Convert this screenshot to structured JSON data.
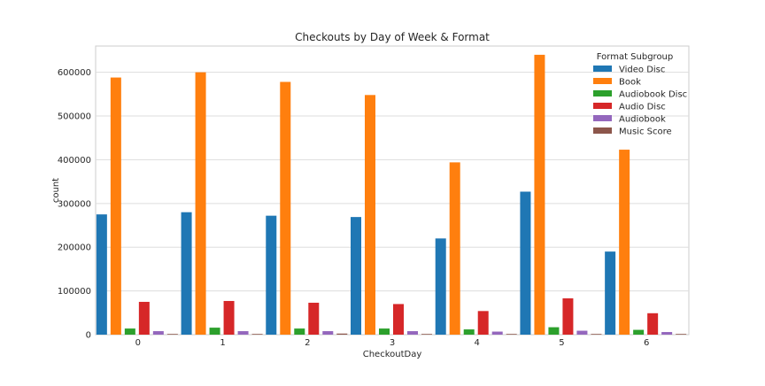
{
  "chart_data": {
    "type": "bar",
    "title": "Checkouts by Day of Week & Format",
    "xlabel": "CheckoutDay",
    "ylabel": "count",
    "categories": [
      "0",
      "1",
      "2",
      "3",
      "4",
      "5",
      "6"
    ],
    "ylim": [
      0,
      660000
    ],
    "yticks": [
      0,
      100000,
      200000,
      300000,
      400000,
      500000,
      600000
    ],
    "ytick_labels": [
      "0",
      "100000",
      "200000",
      "300000",
      "400000",
      "500000",
      "600000"
    ],
    "grid": true,
    "legend": {
      "title": "Format Subgroup",
      "position": "top-right"
    },
    "series": [
      {
        "name": "Video Disc",
        "color": "#1f77b4",
        "values": [
          275000,
          280000,
          272000,
          269000,
          220000,
          327000,
          190000
        ]
      },
      {
        "name": "Book",
        "color": "#ff7f0e",
        "values": [
          588000,
          600000,
          578000,
          548000,
          394000,
          640000,
          423000
        ]
      },
      {
        "name": "Audiobook Disc",
        "color": "#2ca02c",
        "values": [
          14000,
          16000,
          14000,
          14000,
          12000,
          17000,
          11000
        ]
      },
      {
        "name": "Audio Disc",
        "color": "#d62728",
        "values": [
          75000,
          77000,
          73000,
          70000,
          54000,
          83000,
          49000
        ]
      },
      {
        "name": "Audiobook",
        "color": "#9467bd",
        "values": [
          8000,
          8000,
          8000,
          8000,
          7000,
          9000,
          6000
        ]
      },
      {
        "name": "Music Score",
        "color": "#8c564b",
        "values": [
          500,
          500,
          2500,
          500,
          500,
          500,
          500
        ]
      }
    ]
  }
}
